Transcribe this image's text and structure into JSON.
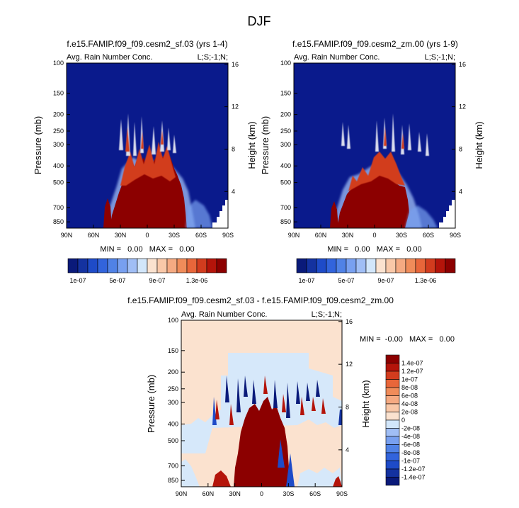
{
  "figure": {
    "title": "DJF"
  },
  "colors": {
    "ramp": [
      "#0a1a7a",
      "#1432a0",
      "#1e4bc8",
      "#3264dc",
      "#5082e6",
      "#78a0f0",
      "#a0bef5",
      "#d2e6fa",
      "#fbe2cf",
      "#f9c8a8",
      "#f5aa82",
      "#f08c5a",
      "#e8663a",
      "#d23c1e",
      "#b4140a",
      "#8c0000"
    ],
    "field_bg": "#0a1a8c",
    "field_hi": "#8c0000",
    "diff_bg": "#fbe2cf",
    "diff_light": "#d6e8fa"
  },
  "chart_data": [
    {
      "id": "top-left",
      "type": "heatmap",
      "title": "f.e15.FAMIP.f09_f09.cesm2_sf.03 (yrs 1-4)",
      "subtitle_left": "Avg. Rain Number Conc.",
      "subtitle_right": "L;S;-1;N;",
      "ylabel": "Pressure (mb)",
      "ylabel_right": "Height (km)",
      "x_ticks": [
        "90N",
        "60N",
        "30N",
        "0",
        "30S",
        "60S",
        "90S"
      ],
      "x_values": [
        90,
        60,
        30,
        0,
        -30,
        -60,
        -90
      ],
      "y_ticks": [
        "100",
        "150",
        "200",
        "250",
        "300",
        "400",
        "500",
        "700",
        "850"
      ],
      "y_values": [
        100,
        150,
        200,
        250,
        300,
        400,
        500,
        700,
        850
      ],
      "ylim": [
        100,
        925
      ],
      "height_ticks": [
        "16",
        "12",
        "8",
        "4"
      ],
      "height_values": [
        16,
        12,
        8,
        4
      ],
      "stats": "MIN =   0.00   MAX =   0.00",
      "colorbar": {
        "labels": [
          "1e-07",
          "5e-07",
          "9e-07",
          "1.3e-06"
        ]
      }
    },
    {
      "id": "top-right",
      "type": "heatmap",
      "title": "f.e15.FAMIP.f09_f09.cesm2_zm.00 (yrs 1-9)",
      "subtitle_left": "Avg. Rain Number Conc.",
      "subtitle_right": "L;S;-1;N;",
      "ylabel": "Pressure (mb)",
      "ylabel_right": "Height (km)",
      "x_ticks": [
        "90N",
        "60N",
        "30N",
        "0",
        "30S",
        "60S",
        "90S"
      ],
      "x_values": [
        90,
        60,
        30,
        0,
        -30,
        -60,
        -90
      ],
      "y_ticks": [
        "100",
        "150",
        "200",
        "250",
        "300",
        "400",
        "500",
        "700",
        "850"
      ],
      "y_values": [
        100,
        150,
        200,
        250,
        300,
        400,
        500,
        700,
        850
      ],
      "ylim": [
        100,
        925
      ],
      "height_ticks": [
        "16",
        "12",
        "8",
        "4"
      ],
      "height_values": [
        16,
        12,
        8,
        4
      ],
      "stats": "MIN =   0.00   MAX =   0.00",
      "colorbar": {
        "labels": [
          "1e-07",
          "5e-07",
          "9e-07",
          "1.3e-06"
        ]
      }
    },
    {
      "id": "bottom",
      "type": "heatmap",
      "title": "f.e15.FAMIP.f09_f09.cesm2_sf.03 - f.e15.FAMIP.f09_f09.cesm2_zm.00",
      "subtitle_left": "Avg. Rain Number Conc.",
      "subtitle_right": "L;S;-1;N;",
      "ylabel": "Pressure (mb)",
      "ylabel_right": "Height (km)",
      "x_ticks": [
        "90N",
        "60N",
        "30N",
        "0",
        "30S",
        "60S",
        "90S"
      ],
      "x_values": [
        90,
        60,
        30,
        0,
        -30,
        -60,
        -90
      ],
      "y_ticks": [
        "100",
        "150",
        "200",
        "250",
        "300",
        "400",
        "500",
        "700",
        "850"
      ],
      "y_values": [
        100,
        150,
        200,
        250,
        300,
        400,
        500,
        700,
        850
      ],
      "ylim": [
        100,
        925
      ],
      "height_ticks": [
        "16",
        "12",
        "8",
        "4"
      ],
      "height_values": [
        16,
        12,
        8,
        4
      ],
      "stats": "MIN =  -0.00   MAX =   0.00",
      "colorbar": {
        "labels": [
          "1.4e-07",
          "1.2e-07",
          "1e-07",
          "8e-08",
          "6e-08",
          "4e-08",
          "2e-08",
          "0",
          "-2e-08",
          "-4e-08",
          "-6e-08",
          "-8e-08",
          "-1e-07",
          "-1.2e-07",
          "-1.4e-07"
        ]
      }
    }
  ]
}
